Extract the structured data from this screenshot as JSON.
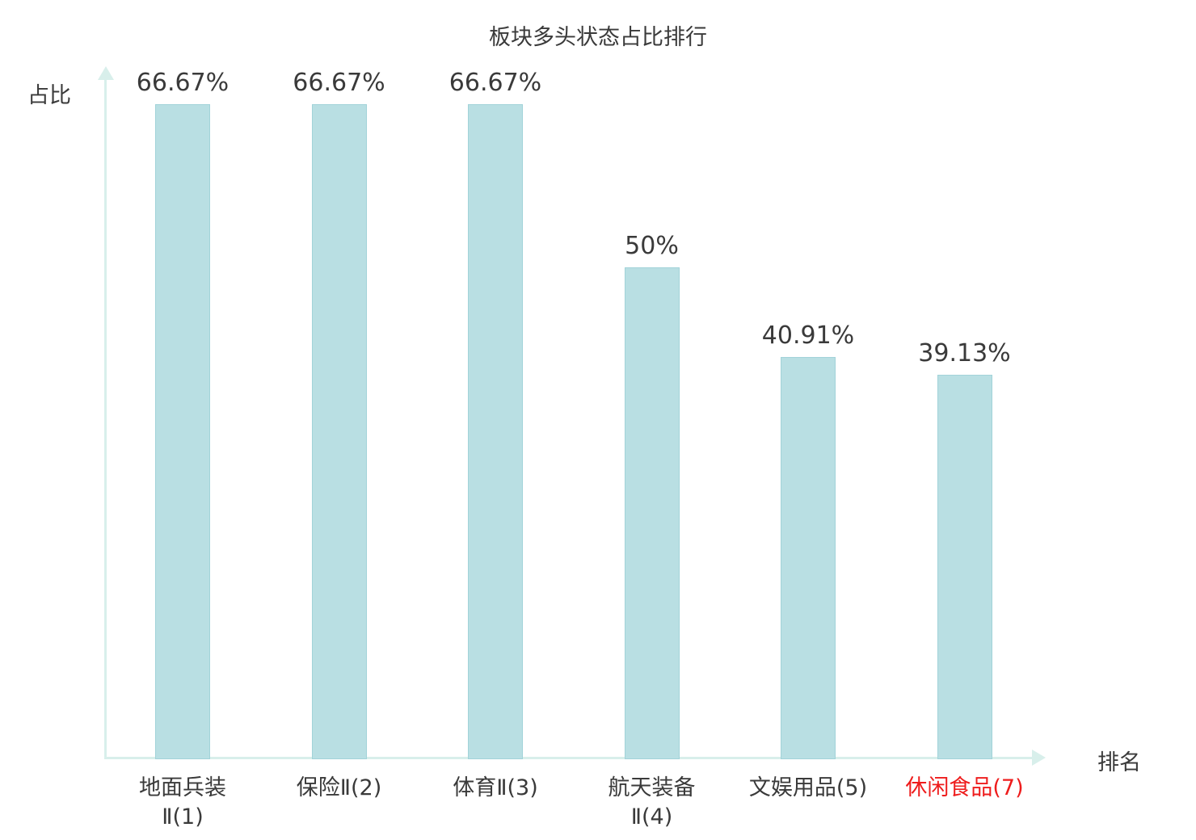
{
  "chart_data": {
    "type": "bar",
    "title": "板块多头状态占比排行",
    "xlabel": "排名",
    "ylabel": "占比",
    "ylim": [
      0,
      70
    ],
    "grid": false,
    "legend": "none",
    "categories": [
      {
        "lines": [
          "地面兵装",
          "Ⅱ(1)"
        ],
        "highlight": false
      },
      {
        "lines": [
          "保险Ⅱ(2)"
        ],
        "highlight": false
      },
      {
        "lines": [
          "体育Ⅱ(3)"
        ],
        "highlight": false
      },
      {
        "lines": [
          "航天装备",
          "Ⅱ(4)"
        ],
        "highlight": false
      },
      {
        "lines": [
          "文娱用品(5)"
        ],
        "highlight": false
      },
      {
        "lines": [
          "休闲食品(7)"
        ],
        "highlight": true
      }
    ],
    "values": [
      66.67,
      66.67,
      66.67,
      50,
      40.91,
      39.13
    ],
    "value_labels": [
      "66.67%",
      "66.67%",
      "66.67%",
      "50%",
      "40.91%",
      "39.13%"
    ],
    "colors": {
      "bar_fill": "#b9dfe3",
      "bar_border": "#a2d3d9",
      "axis": "#d8efeb",
      "text": "#3a3a3a",
      "highlight": "#ee1c1c"
    }
  }
}
